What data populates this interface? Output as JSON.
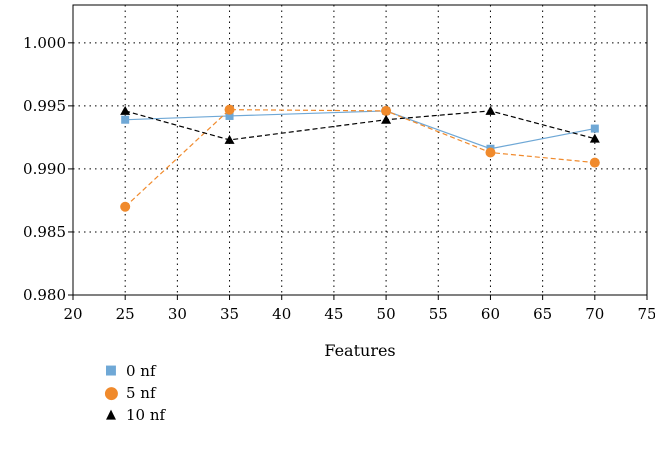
{
  "chart_data": {
    "type": "line",
    "title": "",
    "xlabel": "Features",
    "ylabel": "",
    "xlim": [
      20,
      75
    ],
    "ylim": [
      0.98,
      1.003
    ],
    "xticks": [
      20,
      25,
      30,
      35,
      40,
      45,
      50,
      55,
      60,
      65,
      70,
      75
    ],
    "yticks": [
      0.98,
      0.985,
      0.99,
      0.995,
      1.0
    ],
    "ytick_labels": [
      "0.980",
      "0.985",
      "0.990",
      "0.995",
      "1.000"
    ],
    "grid": true,
    "legend_position": "bottom-left",
    "x": [
      25,
      35,
      50,
      60,
      70
    ],
    "series": [
      {
        "name": "0 nf",
        "marker": "square",
        "line": "solid",
        "color": "#6fa8d6",
        "values": [
          0.9939,
          0.9942,
          0.9946,
          0.9916,
          0.9932
        ]
      },
      {
        "name": "5 nf",
        "marker": "circle",
        "line": "dashed",
        "color": "#f08a2c",
        "values": [
          0.987,
          0.9947,
          0.9946,
          0.9913,
          0.9905
        ]
      },
      {
        "name": "10 nf",
        "marker": "triangle",
        "line": "dashed",
        "color": "#000000",
        "values": [
          0.9946,
          0.9923,
          0.9939,
          0.9946,
          0.9924
        ]
      }
    ]
  }
}
